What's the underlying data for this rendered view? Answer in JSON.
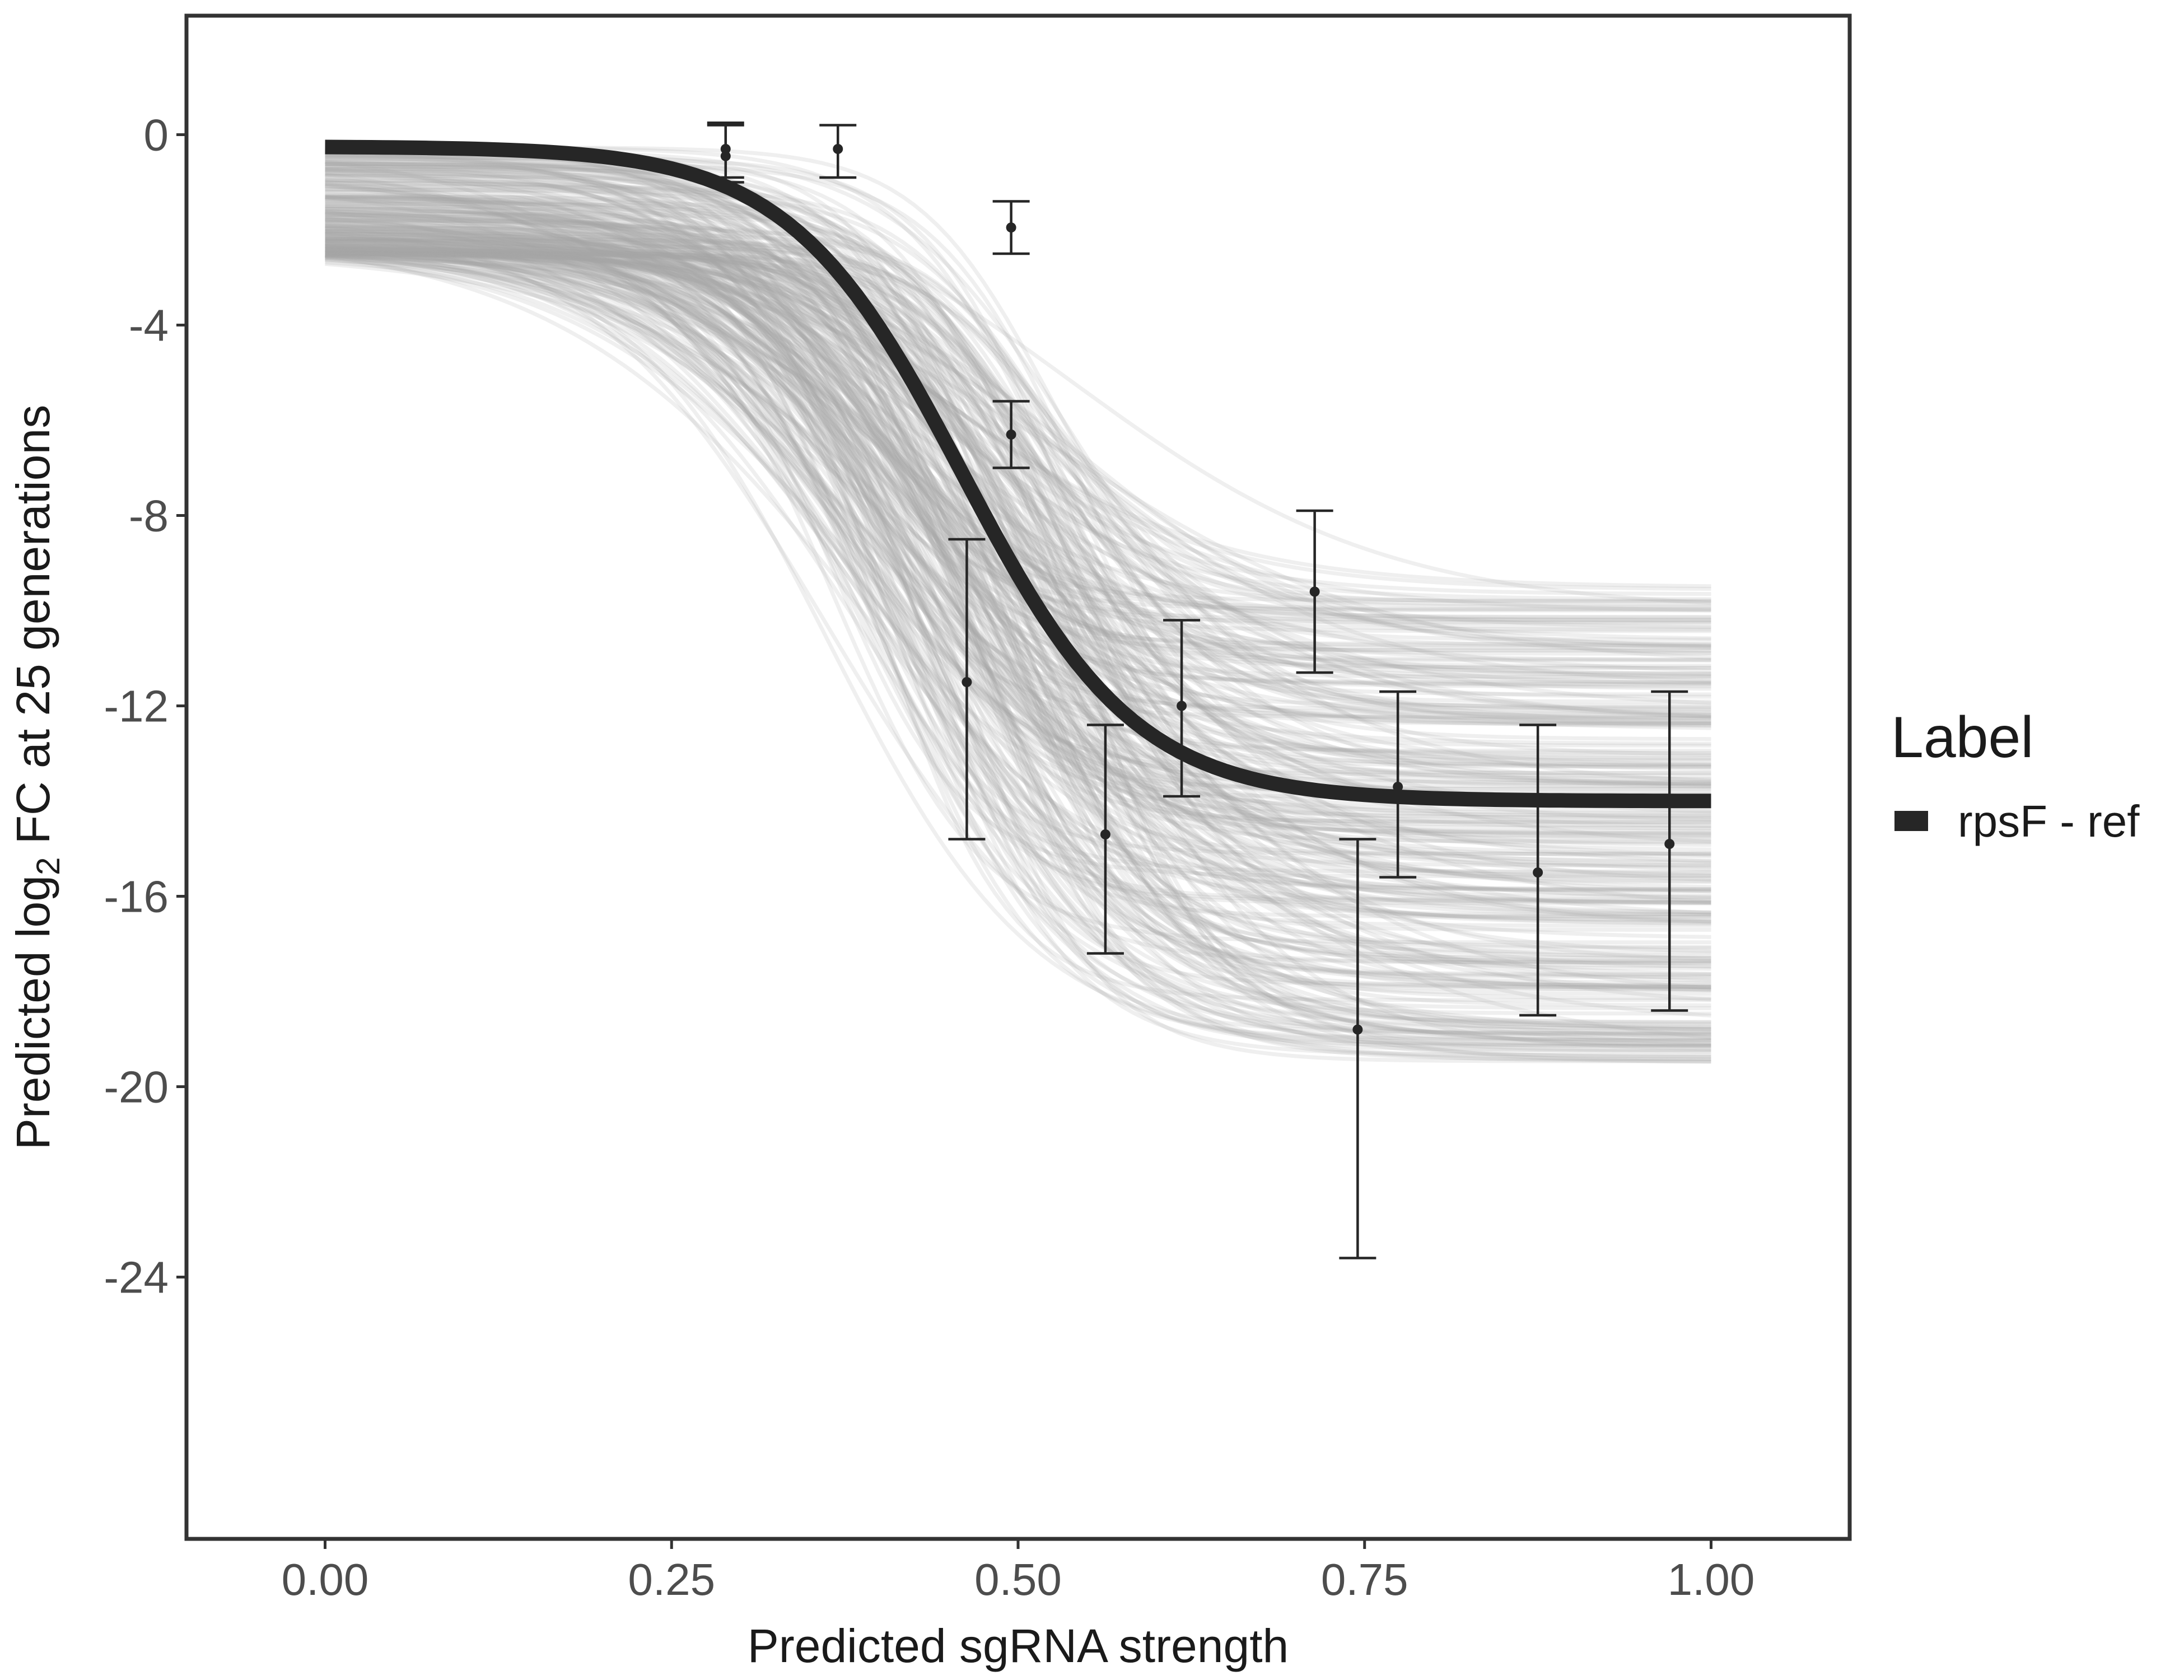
{
  "chart_data": {
    "type": "line",
    "title": "",
    "xlabel": "Predicted sgRNA strength",
    "ylabel_prefix": "Predicted  log",
    "ylabel_subscript": "2",
    "ylabel_suffix": " FC at 25 generations",
    "xlim": [
      -0.1,
      1.1
    ],
    "ylim": [
      -29.5,
      2.5
    ],
    "x_ticks": [
      0.0,
      0.25,
      0.5,
      0.75,
      1.0
    ],
    "x_tick_labels": [
      "0.00",
      "0.25",
      "0.50",
      "0.75",
      "1.00"
    ],
    "y_ticks": [
      0,
      -4,
      -8,
      -12,
      -16,
      -20,
      -24
    ],
    "y_tick_labels": [
      "0",
      "-4",
      "-8",
      "-12",
      "-16",
      "-20",
      "-24"
    ],
    "grid": false,
    "legend": {
      "title": "Label",
      "position": "right",
      "entries": [
        "rpsF - ref"
      ]
    },
    "fit_curve": {
      "name": "rpsF - ref",
      "model": "4-parameter logistic",
      "top": -0.25,
      "bottom": -14.0,
      "midpoint": 0.46,
      "slope": 16
    },
    "posterior_samples": {
      "count": 300,
      "top_range": [
        -2.5,
        -0.2
      ],
      "bottom_range": [
        -19.5,
        -9.5
      ],
      "midpoint_range": [
        0.36,
        0.55
      ],
      "slope_range": [
        8,
        22
      ]
    },
    "points": [
      {
        "x": 0.289,
        "y": -0.3,
        "lower": -1.0,
        "upper": 0.2
      },
      {
        "x": 0.289,
        "y": -0.45,
        "lower": -0.9,
        "upper": 0.25
      },
      {
        "x": 0.37,
        "y": -0.3,
        "lower": -0.9,
        "upper": 0.2
      },
      {
        "x": 0.495,
        "y": -1.95,
        "lower": -2.5,
        "upper": -1.4
      },
      {
        "x": 0.495,
        "y": -6.3,
        "lower": -7.0,
        "upper": -5.6
      },
      {
        "x": 0.463,
        "y": -11.5,
        "lower": -14.8,
        "upper": -8.5
      },
      {
        "x": 0.563,
        "y": -14.7,
        "lower": -17.2,
        "upper": -12.4
      },
      {
        "x": 0.618,
        "y": -12.0,
        "lower": -13.9,
        "upper": -10.2
      },
      {
        "x": 0.714,
        "y": -9.6,
        "lower": -11.3,
        "upper": -7.9
      },
      {
        "x": 0.745,
        "y": -18.8,
        "lower": -23.6,
        "upper": -14.8
      },
      {
        "x": 0.774,
        "y": -13.7,
        "lower": -15.6,
        "upper": -11.7
      },
      {
        "x": 0.875,
        "y": -15.5,
        "lower": -18.5,
        "upper": -12.4
      },
      {
        "x": 0.97,
        "y": -14.9,
        "lower": -18.4,
        "upper": -11.7
      }
    ]
  }
}
